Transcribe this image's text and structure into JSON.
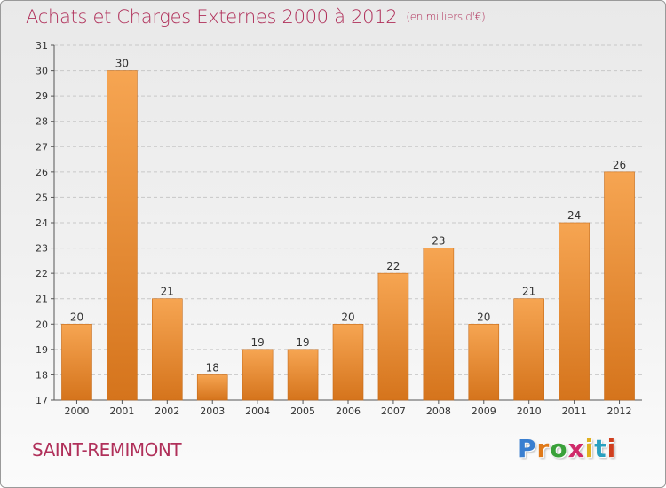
{
  "header": {
    "title": "Achats et Charges Externes 2000 à 2012",
    "unit": "(en milliers d'€)"
  },
  "footer": {
    "city": "SAINT-REMIMONT",
    "brand_letters": [
      "P",
      "r",
      "o",
      "x",
      "i",
      "t",
      "i"
    ],
    "brand_colors": [
      "#3a7fd0",
      "#e07a1a",
      "#3aa13a",
      "#d02a6a",
      "#e0b020",
      "#2aa0c0",
      "#d04020"
    ]
  },
  "colors": {
    "title": "#b0305a",
    "bar_light": "#f6a552",
    "bar_dark": "#d5741c"
  },
  "chart_data": {
    "type": "bar",
    "title": "Achats et Charges Externes 2000 à 2012",
    "subtitle": "(en milliers d'€)",
    "xlabel": "",
    "ylabel": "",
    "categories": [
      "2000",
      "2001",
      "2002",
      "2003",
      "2004",
      "2005",
      "2006",
      "2007",
      "2008",
      "2009",
      "2010",
      "2011",
      "2012"
    ],
    "values": [
      20,
      30,
      21,
      18,
      19,
      19,
      20,
      22,
      23,
      20,
      21,
      24,
      26
    ],
    "ylim": [
      17,
      31
    ],
    "yticks": [
      17,
      18,
      19,
      20,
      21,
      22,
      23,
      24,
      25,
      26,
      27,
      28,
      29,
      30,
      31
    ],
    "grid": "horizontal-dashed",
    "data_labels": true
  }
}
